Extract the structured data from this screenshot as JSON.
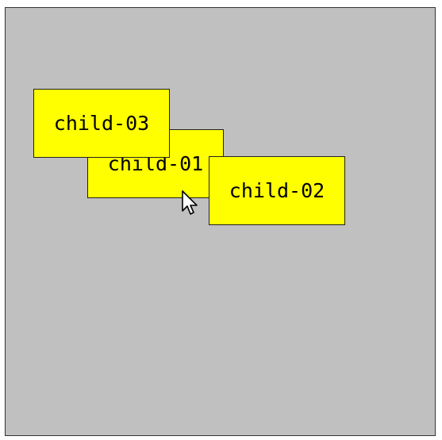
{
  "container": {
    "background_color": "#c0c0c0",
    "border_color": "#333333"
  },
  "children": [
    {
      "id": "child-01",
      "label": "child-01",
      "color": "#ffff00"
    },
    {
      "id": "child-02",
      "label": "child-02",
      "color": "#ffff00"
    },
    {
      "id": "child-03",
      "label": "child-03",
      "color": "#ffff00"
    }
  ],
  "cursor": {
    "icon": "arrow-pointer-icon"
  }
}
